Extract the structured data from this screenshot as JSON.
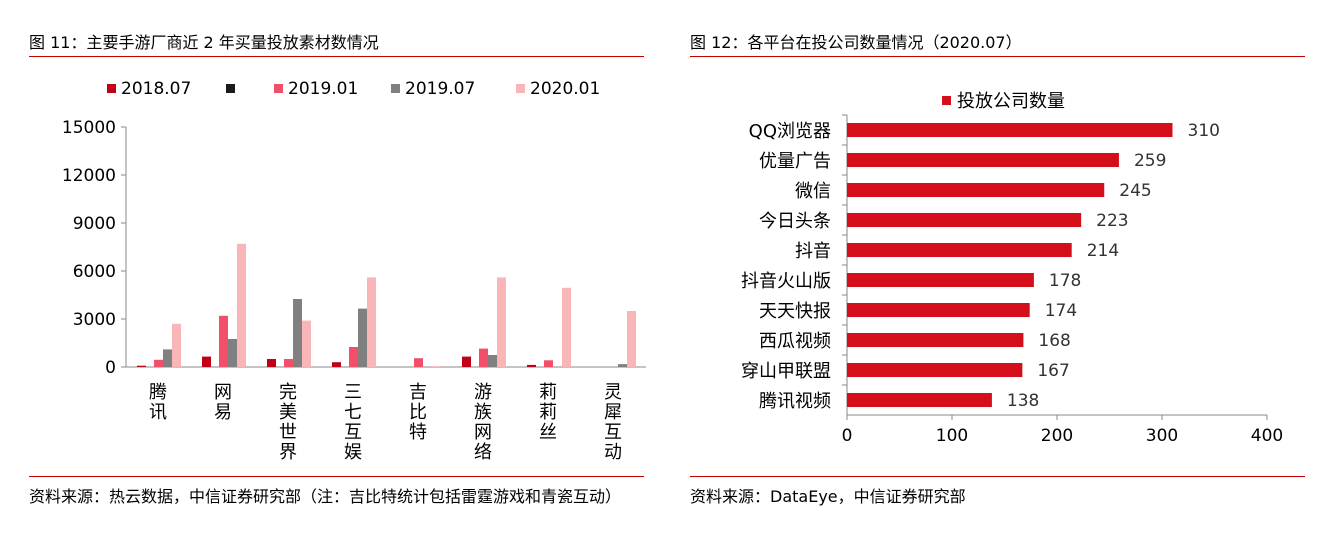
{
  "left": {
    "title": "图 11：主要手游厂商近 2 年买量投放素材数情况",
    "source": "资料来源：热云数据，中信证券研究部（注：吉比特统计包括雷霆游戏和青瓷互动）"
  },
  "right": {
    "title": "图 12：各平台在投公司数量情况（2020.07）",
    "source": "资料来源：DataEye，中信证券研究部"
  },
  "colors": {
    "rule": "#c00000"
  },
  "chart_data": [
    {
      "type": "bar",
      "categories": [
        "腾讯",
        "网易",
        "完美世界",
        "三七互娱",
        "吉比特",
        "游族网络",
        "莉莉丝",
        "灵犀互动"
      ],
      "legend_position": "top",
      "series": [
        {
          "name": "2018.07",
          "color": "#c00018",
          "values": [
            80,
            650,
            500,
            300,
            0,
            650,
            130,
            0
          ]
        },
        {
          "name": "",
          "color": "#1a1a1a",
          "values": [
            0,
            0,
            0,
            0,
            0,
            0,
            0,
            0
          ]
        },
        {
          "name": "2019.01",
          "color": "#f2506a",
          "values": [
            450,
            3200,
            500,
            1250,
            550,
            1150,
            420,
            0
          ]
        },
        {
          "name": "2019.07",
          "color": "#808080",
          "values": [
            1100,
            1750,
            4250,
            3650,
            0,
            750,
            0,
            180
          ]
        },
        {
          "name": "2020.01",
          "color": "#f9b5b8",
          "values": [
            2700,
            7700,
            2900,
            5600,
            50,
            5600,
            4950,
            3500
          ]
        }
      ],
      "ylim": [
        0,
        15000
      ],
      "yticks": [
        "0",
        "3000",
        "6000",
        "9000",
        "12000",
        "15000"
      ],
      "grid": false
    },
    {
      "type": "bar",
      "orientation": "horizontal",
      "categories": [
        "QQ浏览器",
        "优量广告",
        "微信",
        "今日头条",
        "抖音",
        "抖音火山版",
        "天天快报",
        "西瓜视频",
        "穿山甲联盟",
        "腾讯视频"
      ],
      "series": [
        {
          "name": "投放公司数量",
          "color": "#d40f1b",
          "values": [
            310,
            259,
            245,
            223,
            214,
            178,
            174,
            168,
            167,
            138
          ]
        }
      ],
      "xlim": [
        0,
        400
      ],
      "xticks": [
        "0",
        "100",
        "200",
        "300",
        "400"
      ],
      "legend_position": "top",
      "grid": false
    }
  ]
}
